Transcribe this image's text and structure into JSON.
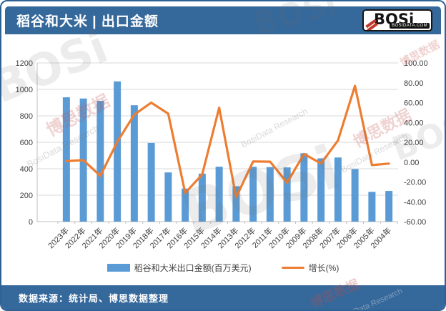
{
  "header": {
    "title": "稻谷和大米 | 出口金额",
    "logo": {
      "brand": "BOSi",
      "site": "BOSIDATA.COM"
    }
  },
  "legend": {
    "items": [
      {
        "label": "稻谷和大米出口金额(百万美元)",
        "swatch": "bar",
        "color": "#5B9BD5"
      },
      {
        "label": "增长(%)",
        "swatch": "line",
        "color": "#ED7D31"
      }
    ]
  },
  "footer": {
    "source": "数据来源：统计局、博思数据整理"
  },
  "watermarks": {
    "cn": "博思数据",
    "en": "BosiData Research",
    "logo": "BOSi"
  },
  "colors": {
    "header_bg": "#35689B",
    "bar": "#5B9BD5",
    "line": "#ED7D31",
    "grid": "#D9D9D9",
    "axis": "#BFBFBF",
    "tick_text": "#404040"
  },
  "chart_data": {
    "type": "combo",
    "categories": [
      "2023年",
      "2022年",
      "2021年",
      "2020年",
      "2019年",
      "2018年",
      "2017年",
      "2016年",
      "2015年",
      "2014年",
      "2013年",
      "2012年",
      "2011年",
      "2010年",
      "2009年",
      "2008年",
      "2007年",
      "2006年",
      "2005年",
      "2004年"
    ],
    "series": [
      {
        "name": "稻谷和大米出口金额(百万美元)",
        "type": "bar",
        "axis": "left",
        "color": "#5B9BD5",
        "values": [
          940,
          931,
          913,
          1060,
          880,
          595,
          372,
          250,
          363,
          415,
          268,
          415,
          412,
          410,
          517,
          478,
          485,
          398,
          225,
          232
        ]
      },
      {
        "name": "增长(%)",
        "type": "line",
        "axis": "right",
        "color": "#ED7D31",
        "values": [
          1.0,
          2.0,
          -13.9,
          20.5,
          47.9,
          59.9,
          48.8,
          -31.1,
          -12.5,
          54.9,
          -35.4,
          0.7,
          0.5,
          -20.7,
          8.2,
          -1.4,
          21.9,
          76.9,
          -3.0,
          -1.5
        ]
      }
    ],
    "left_axis": {
      "min": 0,
      "max": 1200,
      "ticks": [
        0,
        200,
        400,
        600,
        800,
        1000,
        1200
      ]
    },
    "right_axis": {
      "min": -60,
      "max": 100,
      "tick_labels": [
        "-60.00",
        "-40.00",
        "-20.00",
        "0.00",
        "20.00",
        "40.00",
        "60.00",
        "80.00",
        "100.00"
      ]
    },
    "grid": true,
    "legend_position": "bottom",
    "title": "稻谷和大米 | 出口金额",
    "xlabel": "",
    "ylabel_left": "百万美元",
    "ylabel_right": "%"
  }
}
